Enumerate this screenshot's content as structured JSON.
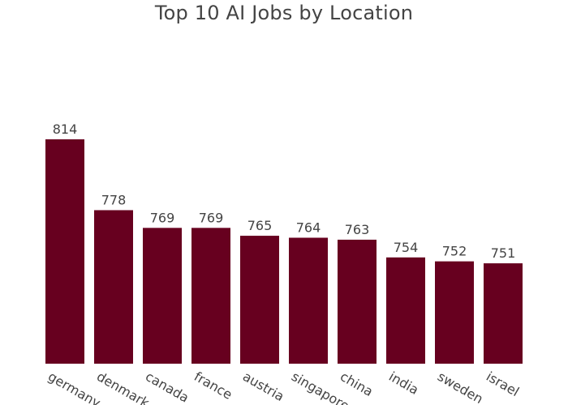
{
  "chart_data": {
    "type": "bar",
    "title": "Top 10 AI Jobs  by Location",
    "xlabel": "",
    "ylabel": "",
    "categories": [
      "germany",
      "denmark",
      "canada",
      "france",
      "austria",
      "singapore",
      "china",
      "india",
      "sweden",
      "israel"
    ],
    "values": [
      814,
      778,
      769,
      769,
      765,
      764,
      763,
      754,
      752,
      751
    ],
    "data_labels": [
      "814",
      "778",
      "769",
      "769",
      "765",
      "764",
      "763",
      "754",
      "752",
      "751"
    ],
    "ylim": [
      700,
      814
    ],
    "grid": false,
    "legend": "none",
    "bar_color": "#67001f",
    "text_color": "#444444"
  }
}
